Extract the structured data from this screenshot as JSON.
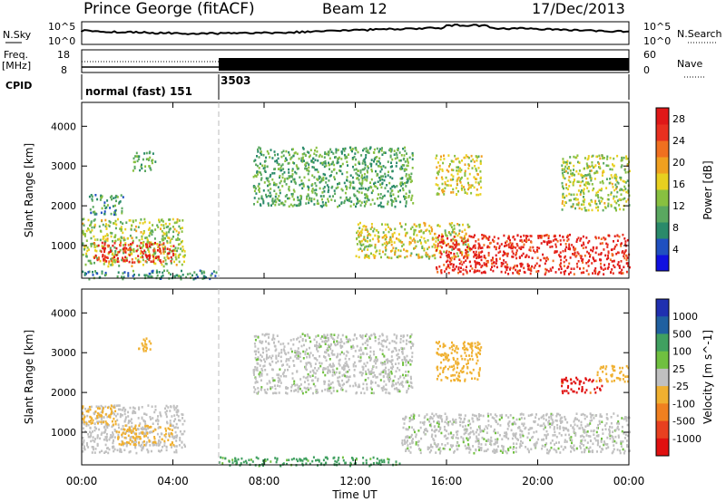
{
  "header": {
    "station": "Prince George (fitACF)",
    "beam": "Beam 12",
    "date": "17/Dec/2013"
  },
  "strips": {
    "nsky_label": "N.Sky",
    "nsearch_label": "N.Search",
    "freq_label_1": "Freq.",
    "freq_label_2": "[MHz]",
    "nave_label": "Nave",
    "cpid_label": "CPID",
    "noise_left_ticks": [
      "10^5",
      "10^0"
    ],
    "noise_right_ticks": [
      "10^5",
      "10^0"
    ],
    "freq_left_ticks": [
      "18",
      "8"
    ],
    "freq_right_ticks": [
      "60",
      "0"
    ],
    "cpid_segments": [
      {
        "label": "normal (fast) 151",
        "start_hour": 0
      },
      {
        "label": "3503",
        "start_hour": 6
      }
    ]
  },
  "axes": {
    "xlabel": "Time UT",
    "x_ticks": [
      "00:00",
      "04:00",
      "08:00",
      "12:00",
      "16:00",
      "20:00",
      "00:00"
    ],
    "ylabel": "Slant Range [km]",
    "y_ticks": [
      "1000",
      "2000",
      "3000",
      "4000"
    ]
  },
  "power_colorbar": {
    "label": "Power [dB]",
    "ticks": [
      "4",
      "8",
      "12",
      "16",
      "20",
      "24",
      "28"
    ],
    "colors": [
      "#1010e0",
      "#2050c0",
      "#2a8a6a",
      "#5aa860",
      "#88c040",
      "#e8d020",
      "#f0a020",
      "#f07020",
      "#e83020",
      "#e01818"
    ]
  },
  "velocity_colorbar": {
    "label": "Velocity [m s^-1]",
    "ticks": [
      "1000",
      "500",
      "100",
      "25",
      "-25",
      "-100",
      "-500",
      "-1000"
    ],
    "colors": [
      "#2030b0",
      "#2060a0",
      "#40a060",
      "#70c040",
      "#c0c0c0",
      "#f0b030",
      "#f08020",
      "#e84020",
      "#e01010"
    ]
  },
  "chart_data": [
    {
      "type": "heatmap",
      "title": "Power",
      "xlabel": "Time UT",
      "ylabel": "Slant Range [km]",
      "xlim": [
        0,
        24
      ],
      "ylim": [
        180,
        4600
      ],
      "cbar_label": "Power [dB]",
      "regions": [
        {
          "t0": 0.0,
          "t1": 4.5,
          "r0": 500,
          "r1": 1700,
          "db": 14
        },
        {
          "t0": 0.5,
          "t1": 4.0,
          "r0": 600,
          "r1": 1100,
          "db": 28
        },
        {
          "t0": 0.0,
          "t1": 6.0,
          "r0": 180,
          "r1": 400,
          "db": 8
        },
        {
          "t0": 2.2,
          "t1": 3.2,
          "r0": 2900,
          "r1": 3400,
          "db": 10
        },
        {
          "t0": 0.3,
          "t1": 1.8,
          "r0": 1800,
          "r1": 2300,
          "db": 8
        },
        {
          "t0": 7.5,
          "t1": 14.5,
          "r0": 2000,
          "r1": 3500,
          "db": 10
        },
        {
          "t0": 12.0,
          "t1": 17.0,
          "r0": 700,
          "r1": 1600,
          "db": 16
        },
        {
          "t0": 15.5,
          "t1": 24.0,
          "r0": 300,
          "r1": 1300,
          "db": 28
        },
        {
          "t0": 15.5,
          "t1": 17.5,
          "r0": 2300,
          "r1": 3300,
          "db": 16
        },
        {
          "t0": 21.0,
          "t1": 24.0,
          "r0": 1900,
          "r1": 3300,
          "db": 14
        }
      ]
    },
    {
      "type": "heatmap",
      "title": "Velocity",
      "xlabel": "Time UT",
      "ylabel": "Slant Range [km]",
      "xlim": [
        0,
        24
      ],
      "ylim": [
        180,
        4600
      ],
      "cbar_label": "Velocity [m s^-1]",
      "regions": [
        {
          "t0": 0.0,
          "t1": 4.5,
          "r0": 500,
          "r1": 1700,
          "vel": -25
        },
        {
          "t0": 1.5,
          "t1": 4.0,
          "r0": 700,
          "r1": 1200,
          "vel": -100
        },
        {
          "t0": 0.0,
          "t1": 1.5,
          "r0": 1200,
          "r1": 1700,
          "vel": -100
        },
        {
          "t0": 2.4,
          "t1": 3.0,
          "r0": 3000,
          "r1": 3400,
          "vel": -100
        },
        {
          "t0": 7.5,
          "t1": 14.5,
          "r0": 2000,
          "r1": 3500,
          "vel": 0
        },
        {
          "t0": 14.0,
          "t1": 24.0,
          "r0": 500,
          "r1": 1500,
          "vel": 0
        },
        {
          "t0": 15.5,
          "t1": 17.5,
          "r0": 2300,
          "r1": 3300,
          "vel": -100
        },
        {
          "t0": 21.0,
          "t1": 22.8,
          "r0": 2000,
          "r1": 2400,
          "vel": -1000
        },
        {
          "t0": 22.5,
          "t1": 24.0,
          "r0": 2300,
          "r1": 2700,
          "vel": -100
        },
        {
          "t0": 6.0,
          "t1": 14.0,
          "r0": 180,
          "r1": 400,
          "vel": 100
        }
      ]
    }
  ]
}
